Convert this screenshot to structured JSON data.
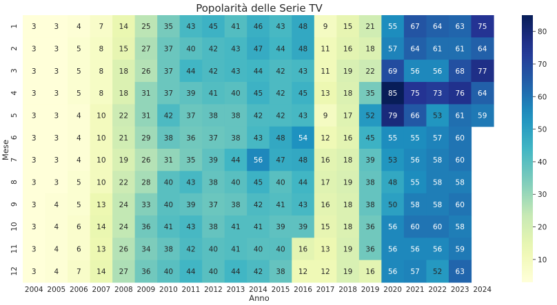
{
  "chart_data": {
    "type": "heatmap",
    "title": "Popolarità delle Serie TV",
    "xlabel": "Anno",
    "ylabel": "Mese",
    "x": [
      "2004",
      "2005",
      "2006",
      "2007",
      "2008",
      "2009",
      "2010",
      "2011",
      "2012",
      "2013",
      "2014",
      "2015",
      "2016",
      "2017",
      "2018",
      "2019",
      "2020",
      "2021",
      "2022",
      "2023",
      "2024"
    ],
    "y": [
      "1",
      "2",
      "3",
      "4",
      "5",
      "6",
      "7",
      "8",
      "9",
      "10",
      "11",
      "12"
    ],
    "values": [
      [
        3,
        3,
        4,
        7,
        14,
        25,
        35,
        43,
        45,
        41,
        46,
        43,
        48,
        9,
        15,
        21,
        55,
        67,
        64,
        63,
        75
      ],
      [
        3,
        3,
        5,
        8,
        15,
        27,
        37,
        40,
        42,
        43,
        47,
        44,
        48,
        11,
        16,
        18,
        57,
        64,
        61,
        61,
        64
      ],
      [
        3,
        3,
        5,
        8,
        18,
        26,
        37,
        44,
        42,
        43,
        44,
        42,
        43,
        11,
        19,
        22,
        69,
        56,
        56,
        68,
        77
      ],
      [
        3,
        3,
        5,
        8,
        18,
        31,
        37,
        39,
        41,
        40,
        45,
        42,
        45,
        13,
        18,
        35,
        85,
        75,
        73,
        76,
        64
      ],
      [
        3,
        3,
        4,
        10,
        22,
        31,
        42,
        37,
        38,
        38,
        42,
        42,
        43,
        9,
        17,
        52,
        79,
        66,
        53,
        61,
        59
      ],
      [
        3,
        3,
        4,
        10,
        21,
        29,
        38,
        36,
        37,
        38,
        43,
        48,
        54,
        12,
        16,
        45,
        55,
        55,
        57,
        60,
        null
      ],
      [
        3,
        3,
        4,
        10,
        19,
        26,
        31,
        35,
        39,
        44,
        56,
        47,
        48,
        16,
        18,
        39,
        53,
        56,
        58,
        60,
        null
      ],
      [
        3,
        3,
        5,
        10,
        22,
        28,
        40,
        43,
        38,
        40,
        45,
        40,
        44,
        17,
        19,
        38,
        48,
        55,
        58,
        58,
        null
      ],
      [
        3,
        4,
        5,
        13,
        24,
        33,
        40,
        39,
        37,
        38,
        42,
        41,
        43,
        16,
        18,
        38,
        50,
        58,
        58,
        60,
        null
      ],
      [
        3,
        4,
        6,
        14,
        24,
        36,
        41,
        43,
        38,
        41,
        41,
        39,
        39,
        15,
        18,
        36,
        56,
        60,
        60,
        58,
        null
      ],
      [
        3,
        4,
        6,
        13,
        26,
        34,
        38,
        42,
        40,
        41,
        40,
        40,
        16,
        13,
        19,
        36,
        56,
        56,
        56,
        59,
        null
      ],
      [
        3,
        4,
        7,
        14,
        27,
        36,
        40,
        44,
        40,
        44,
        42,
        38,
        12,
        12,
        19,
        16,
        56,
        57,
        52,
        63,
        null
      ]
    ],
    "colormap": "YlGnBu",
    "vmin": 3,
    "vmax": 85,
    "colorbar_ticks": [
      10,
      20,
      30,
      40,
      50,
      60,
      70,
      80
    ]
  }
}
